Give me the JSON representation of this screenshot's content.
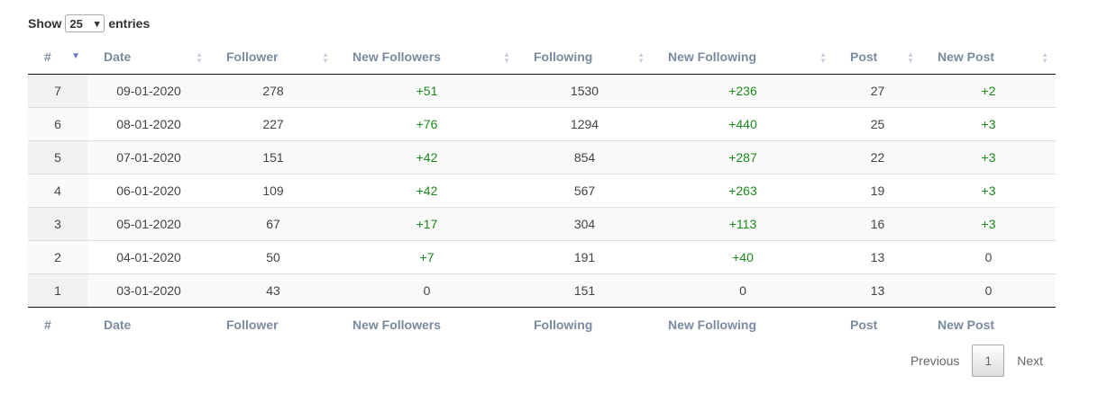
{
  "length_control": {
    "prefix": "Show",
    "selected": "25",
    "suffix": "entries"
  },
  "table": {
    "headers": [
      "#",
      "Date",
      "Follower",
      "New Followers",
      "Following",
      "New Following",
      "Post",
      "New Post"
    ],
    "rows": [
      [
        "7",
        "09-01-2020",
        "278",
        "+51",
        "1530",
        "+236",
        "27",
        "+2"
      ],
      [
        "6",
        "08-01-2020",
        "227",
        "+76",
        "1294",
        "+440",
        "25",
        "+3"
      ],
      [
        "5",
        "07-01-2020",
        "151",
        "+42",
        "854",
        "+287",
        "22",
        "+3"
      ],
      [
        "4",
        "06-01-2020",
        "109",
        "+42",
        "567",
        "+263",
        "19",
        "+3"
      ],
      [
        "3",
        "05-01-2020",
        "67",
        "+17",
        "304",
        "+113",
        "16",
        "+3"
      ],
      [
        "2",
        "04-01-2020",
        "50",
        "+7",
        "191",
        "+40",
        "13",
        "0"
      ],
      [
        "1",
        "03-01-2020",
        "43",
        "0",
        "151",
        "0",
        "13",
        "0"
      ]
    ],
    "footer": [
      "#",
      "Date",
      "Follower",
      "New Followers",
      "Following",
      "New Following",
      "Post",
      "New Post"
    ]
  },
  "pagination": {
    "previous": "Previous",
    "current": "1",
    "next": "Next"
  }
}
